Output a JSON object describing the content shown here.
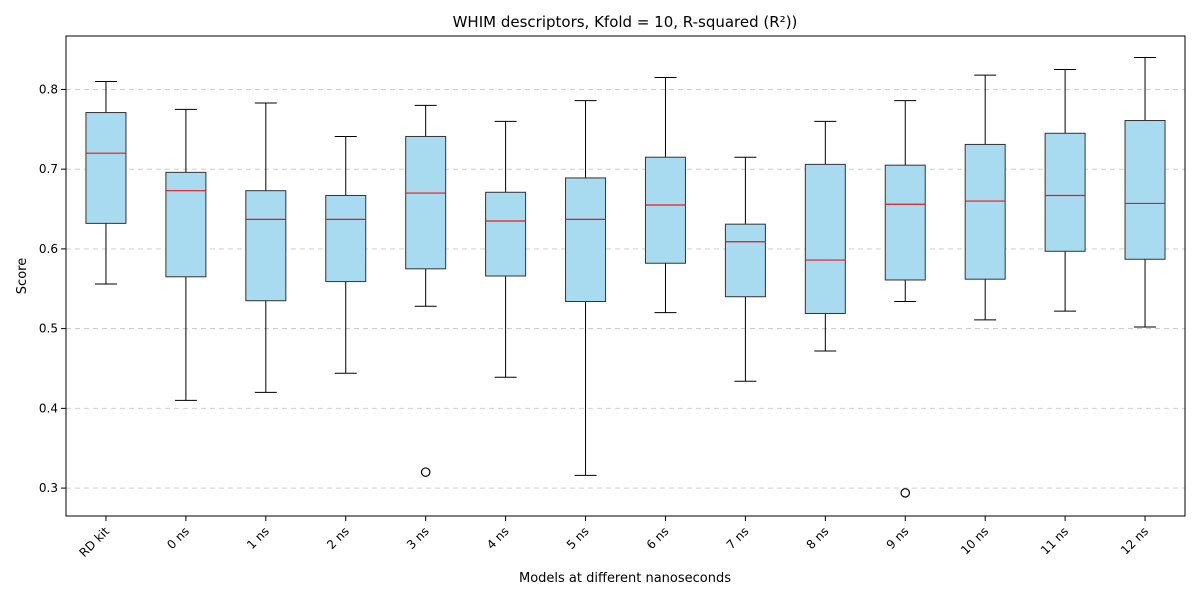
{
  "chart_data": {
    "type": "box",
    "title": "WHIM descriptors, Kfold = 10, R-squared (R²))",
    "xlabel": "Models at different nanoseconds",
    "ylabel": "Score",
    "ylim": [
      0.265,
      0.867
    ],
    "yticks": [
      0.3,
      0.4,
      0.5,
      0.6,
      0.7,
      0.8
    ],
    "grid": "y-dashed",
    "colors": {
      "box_fill": "#a8dbef",
      "box_edge": "#333333",
      "median": "#e8191b",
      "grid": "#c8c8c8"
    },
    "categories": [
      "RD kit",
      "0 ns",
      "1 ns",
      "2 ns",
      "3 ns",
      "4 ns",
      "5 ns",
      "6 ns",
      "7 ns",
      "8 ns",
      "9 ns",
      "10 ns",
      "11 ns",
      "12 ns"
    ],
    "boxes": [
      {
        "whislo": 0.556,
        "q1": 0.632,
        "med": 0.72,
        "q3": 0.771,
        "whishi": 0.81,
        "fliers": []
      },
      {
        "whislo": 0.41,
        "q1": 0.565,
        "med": 0.673,
        "q3": 0.696,
        "whishi": 0.775,
        "fliers": []
      },
      {
        "whislo": 0.42,
        "q1": 0.535,
        "med": 0.637,
        "q3": 0.673,
        "whishi": 0.783,
        "fliers": []
      },
      {
        "whislo": 0.444,
        "q1": 0.559,
        "med": 0.637,
        "q3": 0.667,
        "whishi": 0.741,
        "fliers": []
      },
      {
        "whislo": 0.528,
        "q1": 0.575,
        "med": 0.67,
        "q3": 0.741,
        "whishi": 0.78,
        "fliers": [
          0.32
        ]
      },
      {
        "whislo": 0.439,
        "q1": 0.566,
        "med": 0.635,
        "q3": 0.671,
        "whishi": 0.76,
        "fliers": []
      },
      {
        "whislo": 0.316,
        "q1": 0.534,
        "med": 0.637,
        "q3": 0.689,
        "whishi": 0.786,
        "fliers": []
      },
      {
        "whislo": 0.52,
        "q1": 0.582,
        "med": 0.655,
        "q3": 0.715,
        "whishi": 0.815,
        "fliers": []
      },
      {
        "whislo": 0.434,
        "q1": 0.54,
        "med": 0.609,
        "q3": 0.631,
        "whishi": 0.715,
        "fliers": []
      },
      {
        "whislo": 0.472,
        "q1": 0.519,
        "med": 0.586,
        "q3": 0.706,
        "whishi": 0.76,
        "fliers": []
      },
      {
        "whislo": 0.534,
        "q1": 0.561,
        "med": 0.656,
        "q3": 0.705,
        "whishi": 0.786,
        "fliers": [
          0.294
        ]
      },
      {
        "whislo": 0.511,
        "q1": 0.562,
        "med": 0.66,
        "q3": 0.731,
        "whishi": 0.818,
        "fliers": []
      },
      {
        "whislo": 0.522,
        "q1": 0.597,
        "med": 0.667,
        "q3": 0.745,
        "whishi": 0.825,
        "fliers": []
      },
      {
        "whislo": 0.502,
        "q1": 0.587,
        "med": 0.657,
        "q3": 0.761,
        "whishi": 0.84,
        "fliers": []
      }
    ]
  }
}
